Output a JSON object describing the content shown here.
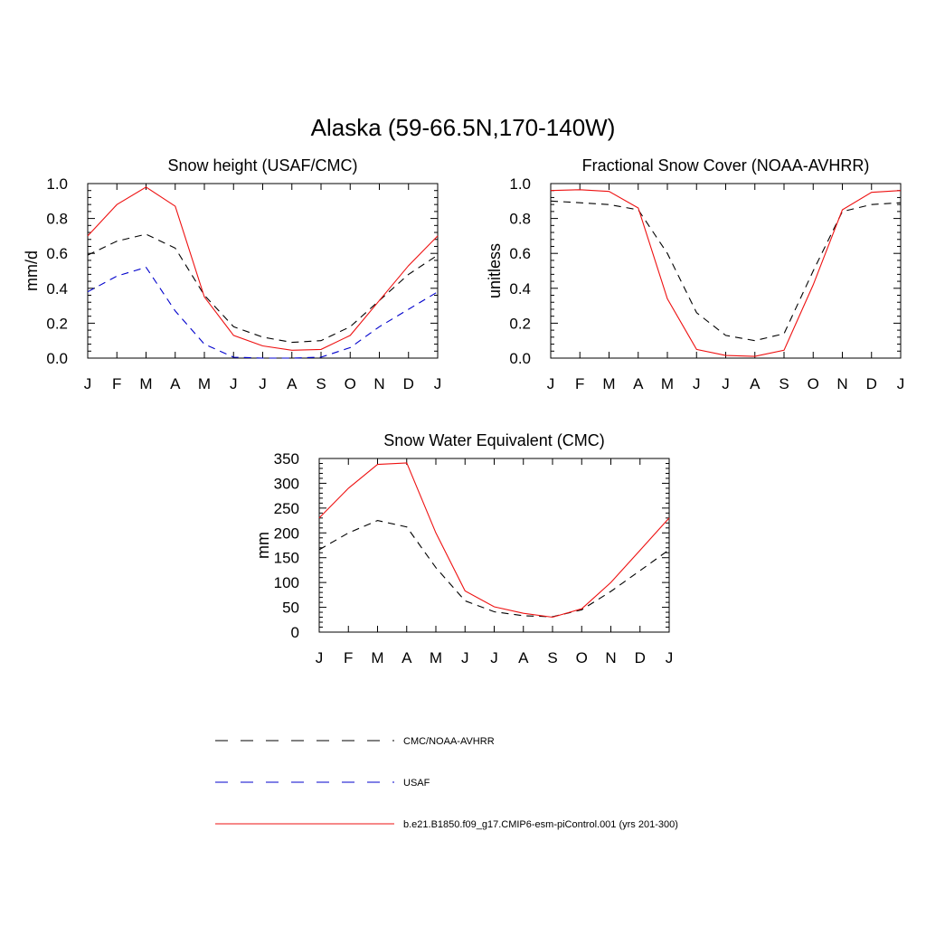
{
  "title": "Alaska (59-66.5N,170-140W)",
  "months": [
    "J",
    "F",
    "M",
    "A",
    "M",
    "J",
    "J",
    "A",
    "S",
    "O",
    "N",
    "D",
    "J"
  ],
  "colors": {
    "obs": "#000000",
    "usaf": "#0000cc",
    "model": "#ee1111"
  },
  "chart_data": [
    {
      "type": "line",
      "title": "Snow height (USAF/CMC)",
      "xlabel": "",
      "ylabel": "mm/d",
      "ylim": [
        0,
        1.0
      ],
      "yticks": [
        "0.0",
        "0.2",
        "0.4",
        "0.6",
        "0.8",
        "1.0"
      ],
      "categories": [
        "J",
        "F",
        "M",
        "A",
        "M",
        "J",
        "J",
        "A",
        "S",
        "O",
        "N",
        "D",
        "J"
      ],
      "series": [
        {
          "name": "CMC/NOAA-AVHRR",
          "style": "dashed",
          "color": "#000000",
          "values": [
            0.59,
            0.67,
            0.71,
            0.63,
            0.36,
            0.18,
            0.12,
            0.09,
            0.1,
            0.18,
            0.33,
            0.48,
            0.59
          ]
        },
        {
          "name": "USAF",
          "style": "dashed",
          "color": "#0000cc",
          "values": [
            0.38,
            0.47,
            0.52,
            0.27,
            0.08,
            0.005,
            0.0,
            0.0,
            0.005,
            0.06,
            0.18,
            0.28,
            0.38
          ]
        },
        {
          "name": "b.e21.B1850.f09_g17.CMIP6-esm-piControl.001 (yrs 201-300)",
          "style": "solid",
          "color": "#ee1111",
          "values": [
            0.7,
            0.88,
            0.98,
            0.87,
            0.35,
            0.13,
            0.07,
            0.045,
            0.05,
            0.13,
            0.33,
            0.53,
            0.7
          ]
        }
      ]
    },
    {
      "type": "line",
      "title": "Fractional Snow Cover (NOAA-AVHRR)",
      "xlabel": "",
      "ylabel": "unitless",
      "ylim": [
        0,
        1.0
      ],
      "yticks": [
        "0.0",
        "0.2",
        "0.4",
        "0.6",
        "0.8",
        "1.0"
      ],
      "categories": [
        "J",
        "F",
        "M",
        "A",
        "M",
        "J",
        "J",
        "A",
        "S",
        "O",
        "N",
        "D",
        "J"
      ],
      "series": [
        {
          "name": "CMC/NOAA-AVHRR",
          "style": "dashed",
          "color": "#000000",
          "values": [
            0.9,
            0.89,
            0.88,
            0.85,
            0.6,
            0.26,
            0.13,
            0.1,
            0.14,
            0.5,
            0.84,
            0.88,
            0.89
          ]
        },
        {
          "name": "b.e21.B1850.f09_g17.CMIP6-esm-piControl.001 (yrs 201-300)",
          "style": "solid",
          "color": "#ee1111",
          "values": [
            0.96,
            0.965,
            0.955,
            0.86,
            0.34,
            0.05,
            0.015,
            0.01,
            0.045,
            0.42,
            0.85,
            0.95,
            0.96
          ]
        }
      ]
    },
    {
      "type": "line",
      "title": "Snow Water Equivalent (CMC)",
      "xlabel": "",
      "ylabel": "mm",
      "ylim": [
        0,
        350
      ],
      "yticks": [
        "0",
        "50",
        "100",
        "150",
        "200",
        "250",
        "300",
        "350"
      ],
      "categories": [
        "J",
        "F",
        "M",
        "A",
        "M",
        "J",
        "J",
        "A",
        "S",
        "O",
        "N",
        "D",
        "J"
      ],
      "series": [
        {
          "name": "CMC/NOAA-AVHRR",
          "style": "dashed",
          "color": "#000000",
          "values": [
            166,
            200,
            225,
            212,
            130,
            63,
            41,
            33,
            31,
            45,
            82,
            124,
            166
          ]
        },
        {
          "name": "b.e21.B1850.f09_g17.CMIP6-esm-piControl.001 (yrs 201-300)",
          "style": "solid",
          "color": "#ee1111",
          "values": [
            230,
            290,
            338,
            341,
            200,
            83,
            51,
            38,
            30,
            47,
            100,
            165,
            230
          ]
        }
      ]
    }
  ],
  "legend": [
    {
      "label": "CMC/NOAA-AVHRR",
      "style": "dashed",
      "color": "#000000"
    },
    {
      "label": "USAF",
      "style": "dashed",
      "color": "#0000cc"
    },
    {
      "label": "b.e21.B1850.f09_g17.CMIP6-esm-piControl.001 (yrs 201-300)",
      "style": "solid",
      "color": "#ee1111"
    }
  ]
}
